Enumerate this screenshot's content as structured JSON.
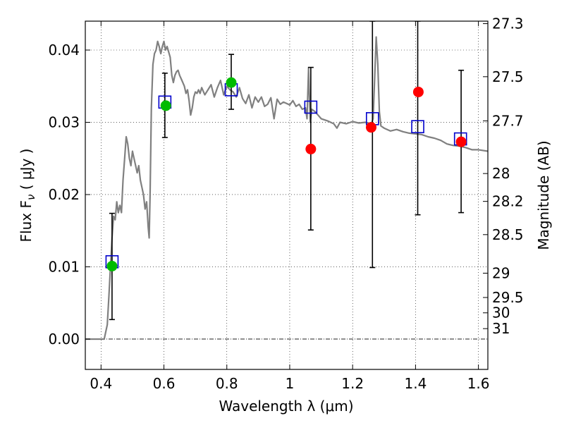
{
  "chart_data": {
    "type": "scatter",
    "xlabel": "Wavelength  λ (μm)",
    "ylabel": "Flux  F",
    "ylabel_sub": "ν",
    "ylabel_unit": "  ( μJy )",
    "y2label": "Magnitude (AB)",
    "xlim": [
      0.35,
      1.63
    ],
    "ylim": [
      -0.0042,
      0.044
    ],
    "grid": true,
    "x_ticks": [
      {
        "value": 0.4,
        "label": "0.4"
      },
      {
        "value": 0.6,
        "label": "0.6"
      },
      {
        "value": 0.8,
        "label": "0.8"
      },
      {
        "value": 1.0,
        "label": "1"
      },
      {
        "value": 1.2,
        "label": "1.2"
      },
      {
        "value": 1.4,
        "label": "1.4"
      },
      {
        "value": 1.6,
        "label": "1.6"
      }
    ],
    "y_ticks": [
      {
        "value": 0.0,
        "label": "0.00"
      },
      {
        "value": 0.01,
        "label": "0.01"
      },
      {
        "value": 0.02,
        "label": "0.02"
      },
      {
        "value": 0.03,
        "label": "0.03"
      },
      {
        "value": 0.04,
        "label": "0.04"
      }
    ],
    "mag_ticks": [
      {
        "value": 27.3,
        "label": "27.3"
      },
      {
        "value": 27.5,
        "label": "27.5"
      },
      {
        "value": 27.7,
        "label": "27.7"
      },
      {
        "value": 28,
        "label": "28"
      },
      {
        "value": 28.2,
        "label": "28.2"
      },
      {
        "value": 28.5,
        "label": "28.5"
      },
      {
        "value": 29,
        "label": "29"
      },
      {
        "value": 29.5,
        "label": "29.5"
      },
      {
        "value": 30,
        "label": "30"
      },
      {
        "value": 31,
        "label": "31"
      }
    ],
    "series": [
      {
        "kind": "sed_line",
        "color": "#808080",
        "points": [
          [
            0.35,
            0.0
          ],
          [
            0.41,
            0.0
          ],
          [
            0.42,
            0.002
          ],
          [
            0.425,
            0.006
          ],
          [
            0.43,
            0.01
          ],
          [
            0.435,
            0.014
          ],
          [
            0.44,
            0.017
          ],
          [
            0.445,
            0.0165
          ],
          [
            0.45,
            0.019
          ],
          [
            0.455,
            0.0175
          ],
          [
            0.46,
            0.0185
          ],
          [
            0.465,
            0.0175
          ],
          [
            0.47,
            0.022
          ],
          [
            0.475,
            0.025
          ],
          [
            0.48,
            0.028
          ],
          [
            0.485,
            0.027
          ],
          [
            0.49,
            0.025
          ],
          [
            0.495,
            0.024
          ],
          [
            0.5,
            0.026
          ],
          [
            0.505,
            0.025
          ],
          [
            0.51,
            0.024
          ],
          [
            0.515,
            0.023
          ],
          [
            0.52,
            0.024
          ],
          [
            0.525,
            0.022
          ],
          [
            0.53,
            0.021
          ],
          [
            0.535,
            0.02
          ],
          [
            0.54,
            0.018
          ],
          [
            0.545,
            0.019
          ],
          [
            0.55,
            0.0155
          ],
          [
            0.553,
            0.014
          ],
          [
            0.556,
            0.02
          ],
          [
            0.56,
            0.032
          ],
          [
            0.565,
            0.038
          ],
          [
            0.57,
            0.0395
          ],
          [
            0.575,
            0.04
          ],
          [
            0.58,
            0.0412
          ],
          [
            0.585,
            0.0405
          ],
          [
            0.59,
            0.0395
          ],
          [
            0.595,
            0.0405
          ],
          [
            0.6,
            0.0412
          ],
          [
            0.605,
            0.04
          ],
          [
            0.61,
            0.0405
          ],
          [
            0.62,
            0.039
          ],
          [
            0.625,
            0.0365
          ],
          [
            0.63,
            0.0355
          ],
          [
            0.635,
            0.0365
          ],
          [
            0.64,
            0.037
          ],
          [
            0.645,
            0.0372
          ],
          [
            0.65,
            0.0365
          ],
          [
            0.655,
            0.036
          ],
          [
            0.66,
            0.0355
          ],
          [
            0.665,
            0.035
          ],
          [
            0.67,
            0.034
          ],
          [
            0.675,
            0.0345
          ],
          [
            0.68,
            0.033
          ],
          [
            0.685,
            0.031
          ],
          [
            0.69,
            0.032
          ],
          [
            0.695,
            0.0335
          ],
          [
            0.7,
            0.0342
          ],
          [
            0.705,
            0.034
          ],
          [
            0.71,
            0.0345
          ],
          [
            0.715,
            0.034
          ],
          [
            0.72,
            0.0348
          ],
          [
            0.73,
            0.0338
          ],
          [
            0.74,
            0.0345
          ],
          [
            0.75,
            0.0352
          ],
          [
            0.76,
            0.0335
          ],
          [
            0.77,
            0.0348
          ],
          [
            0.78,
            0.0358
          ],
          [
            0.79,
            0.0338
          ],
          [
            0.8,
            0.035
          ],
          [
            0.81,
            0.0345
          ],
          [
            0.82,
            0.0342
          ],
          [
            0.83,
            0.0335
          ],
          [
            0.84,
            0.0348
          ],
          [
            0.85,
            0.0333
          ],
          [
            0.86,
            0.0326
          ],
          [
            0.87,
            0.0338
          ],
          [
            0.88,
            0.032
          ],
          [
            0.89,
            0.0335
          ],
          [
            0.9,
            0.0328
          ],
          [
            0.91,
            0.0335
          ],
          [
            0.92,
            0.0322
          ],
          [
            0.93,
            0.0325
          ],
          [
            0.94,
            0.0334
          ],
          [
            0.95,
            0.0305
          ],
          [
            0.96,
            0.0332
          ],
          [
            0.97,
            0.0325
          ],
          [
            0.98,
            0.0328
          ],
          [
            0.99,
            0.0326
          ],
          [
            1.0,
            0.0324
          ],
          [
            1.01,
            0.033
          ],
          [
            1.02,
            0.0322
          ],
          [
            1.03,
            0.0325
          ],
          [
            1.04,
            0.0318
          ],
          [
            1.05,
            0.032
          ],
          [
            1.055,
            0.0305
          ],
          [
            1.06,
            0.0375
          ],
          [
            1.065,
            0.03
          ],
          [
            1.07,
            0.0318
          ],
          [
            1.08,
            0.0315
          ],
          [
            1.09,
            0.031
          ],
          [
            1.1,
            0.0305
          ],
          [
            1.12,
            0.0302
          ],
          [
            1.14,
            0.0298
          ],
          [
            1.15,
            0.0292
          ],
          [
            1.16,
            0.03
          ],
          [
            1.18,
            0.0298
          ],
          [
            1.2,
            0.0301
          ],
          [
            1.22,
            0.0299
          ],
          [
            1.24,
            0.03
          ],
          [
            1.26,
            0.0298
          ],
          [
            1.265,
            0.0305
          ],
          [
            1.27,
            0.036
          ],
          [
            1.275,
            0.0418
          ],
          [
            1.28,
            0.038
          ],
          [
            1.285,
            0.0315
          ],
          [
            1.29,
            0.0295
          ],
          [
            1.3,
            0.0292
          ],
          [
            1.32,
            0.0288
          ],
          [
            1.34,
            0.029
          ],
          [
            1.36,
            0.0287
          ],
          [
            1.38,
            0.0285
          ],
          [
            1.4,
            0.0284
          ],
          [
            1.42,
            0.0283
          ],
          [
            1.44,
            0.028
          ],
          [
            1.46,
            0.0278
          ],
          [
            1.48,
            0.0275
          ],
          [
            1.5,
            0.027
          ],
          [
            1.52,
            0.0268
          ],
          [
            1.54,
            0.0267
          ],
          [
            1.56,
            0.0265
          ],
          [
            1.58,
            0.0262
          ],
          [
            1.6,
            0.0262
          ],
          [
            1.63,
            0.026
          ]
        ]
      },
      {
        "kind": "model_squares",
        "color": "#0000cc",
        "points": [
          [
            0.435,
            0.0107
          ],
          [
            0.603,
            0.0328
          ],
          [
            0.814,
            0.0345
          ],
          [
            1.067,
            0.0321
          ],
          [
            1.263,
            0.0305
          ],
          [
            1.407,
            0.0294
          ],
          [
            1.543,
            0.0277
          ]
        ]
      },
      {
        "kind": "detections",
        "color": "#00bb00",
        "points": [
          [
            0.435,
            0.0101
          ],
          [
            0.606,
            0.0323
          ],
          [
            0.814,
            0.0355
          ]
        ]
      },
      {
        "kind": "upper_limits",
        "color": "#ff0000",
        "points": [
          [
            1.067,
            0.0263
          ],
          [
            1.259,
            0.0293
          ],
          [
            1.409,
            0.0342
          ],
          [
            1.545,
            0.0273
          ]
        ]
      },
      {
        "kind": "error_bars",
        "color": "#000000",
        "points": [
          {
            "x": 0.435,
            "low": 0.0027,
            "high": 0.0174
          },
          {
            "x": 0.603,
            "low": 0.0279,
            "high": 0.0368
          },
          {
            "x": 0.814,
            "low": 0.0318,
            "high": 0.0394
          },
          {
            "x": 1.067,
            "low": 0.0151,
            "high": 0.0376
          },
          {
            "x": 1.263,
            "low": 0.0099,
            "high": 0.044
          },
          {
            "x": 1.407,
            "low": 0.0172,
            "high": 0.044
          },
          {
            "x": 1.545,
            "low": 0.0175,
            "high": 0.0372
          }
        ]
      }
    ]
  }
}
